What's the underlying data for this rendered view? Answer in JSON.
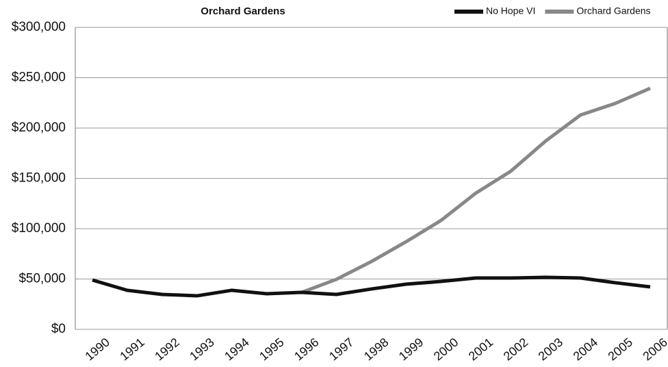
{
  "chart_data": {
    "type": "line",
    "title": "Orchard Gardens",
    "categories": [
      "1990",
      "1991",
      "1992",
      "1993",
      "1994",
      "1995",
      "1996",
      "1997",
      "1998",
      "1999",
      "2000",
      "2001",
      "2002",
      "2003",
      "2004",
      "2005",
      "2006"
    ],
    "series": [
      {
        "name": "No Hope VI",
        "color": "#111111",
        "values": [
          49000,
          38800,
          34700,
          33300,
          38800,
          35400,
          36700,
          34700,
          40100,
          44900,
          47600,
          51000,
          51000,
          51700,
          51000,
          46300,
          42200
        ]
      },
      {
        "name": "Orchard Gardens",
        "color": "#888888",
        "values": [
          null,
          null,
          null,
          null,
          null,
          null,
          36700,
          49700,
          67300,
          87100,
          108200,
          135400,
          157100,
          187100,
          212900,
          224500,
          239500
        ]
      }
    ],
    "ylim": [
      0,
      300000
    ],
    "yticks": [
      {
        "value": 0,
        "label": "$0"
      },
      {
        "value": 50000,
        "label": "$50,000"
      },
      {
        "value": 100000,
        "label": "$100,000"
      },
      {
        "value": 150000,
        "label": "$150,000"
      },
      {
        "value": 200000,
        "label": "$200,000"
      },
      {
        "value": 250000,
        "label": "$250,000"
      },
      {
        "value": 300000,
        "label": "$300,000"
      }
    ],
    "grid": true,
    "legend": "top-right"
  }
}
